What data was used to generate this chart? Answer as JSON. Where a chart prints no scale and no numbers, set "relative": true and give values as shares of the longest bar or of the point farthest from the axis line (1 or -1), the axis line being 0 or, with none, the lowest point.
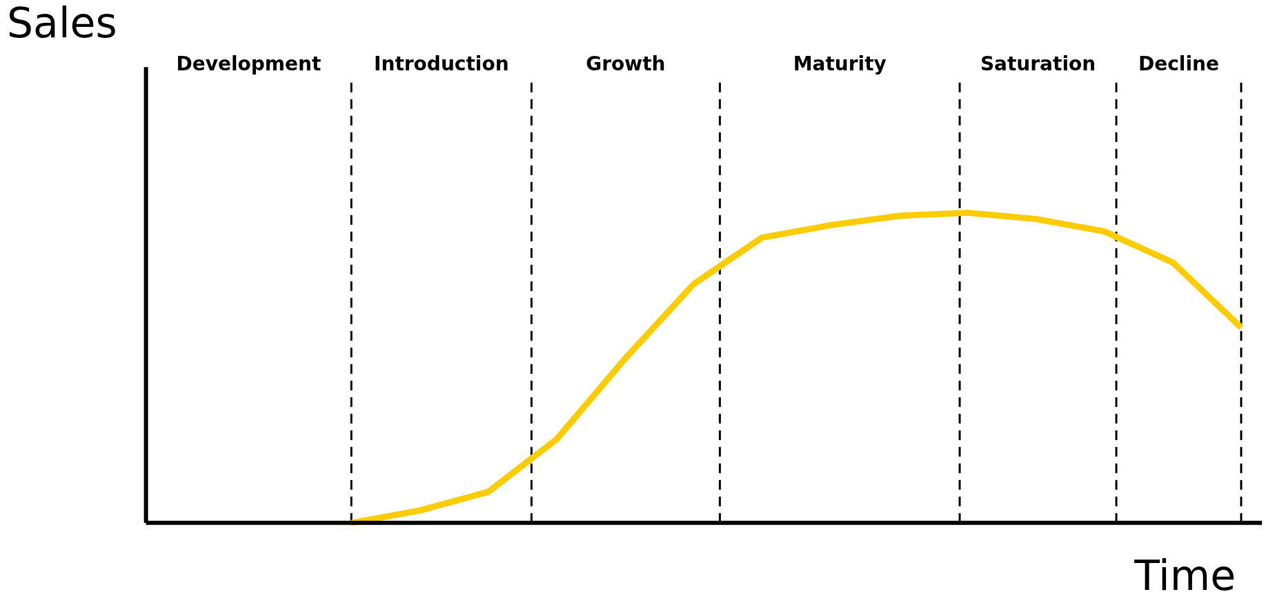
{
  "chart_data": {
    "type": "line",
    "relative": true,
    "xlabel": "Time",
    "ylabel": "Sales",
    "tick_labels": false,
    "grid": false,
    "line_style": "solid",
    "marker": "none",
    "categories": [
      null,
      null,
      null,
      null,
      null,
      null,
      null,
      null,
      null,
      null,
      null,
      null,
      null,
      null,
      null,
      null,
      null
    ],
    "series": [
      {
        "color": "#ffcc00",
        "values": [
          null,
          null,
          null,
          0,
          0.04,
          0.1,
          0.27,
          0.53,
          0.77,
          0.92,
          0.96,
          0.99,
          1.0,
          0.98,
          0.94,
          0.84,
          0.63
        ]
      }
    ],
    "annotations": [
      "Development",
      "Introduction",
      "Growth",
      "Maturity",
      "Saturation",
      "Decline"
    ]
  }
}
